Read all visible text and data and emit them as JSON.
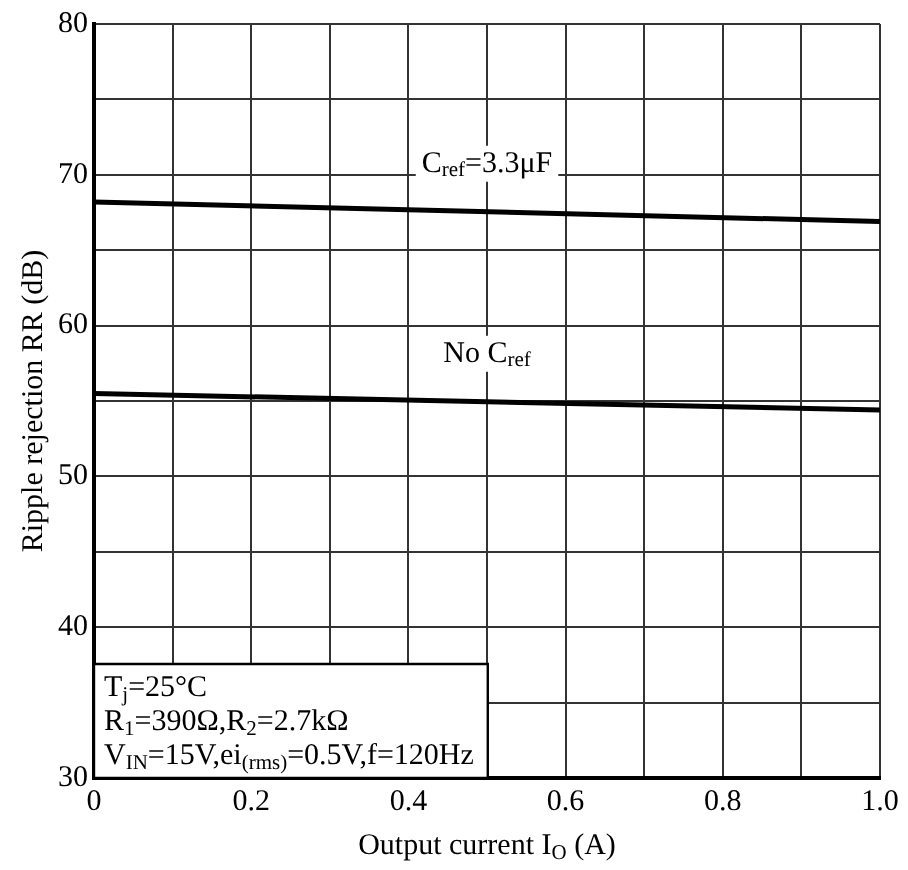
{
  "chart_data": {
    "type": "line",
    "xlabel": "Output current I$_{O}$ (A)",
    "ylabel": "Ripple rejection RR (dB)",
    "x": [
      0,
      1
    ],
    "series": [
      {
        "name": "C$_{ref}$=3.3μF",
        "color": "#000000",
        "values": [
          68.2,
          66.9
        ]
      },
      {
        "name": "No C$_{ref}$",
        "color": "#000000",
        "values": [
          55.5,
          54.4
        ]
      }
    ],
    "xlim": [
      0,
      1
    ],
    "ylim": [
      30,
      80
    ],
    "xticks": [
      0,
      {
        "value": 0.1,
        "label": null
      },
      0.2,
      {
        "value": 0.3,
        "label": null
      },
      0.4,
      {
        "value": 0.5,
        "label": null
      },
      0.6,
      {
        "value": 0.7,
        "label": null
      },
      0.8,
      {
        "value": 0.9,
        "label": null
      },
      {
        "value": 1,
        "label": "1.0"
      }
    ],
    "yticks": [
      30,
      {
        "value": 35,
        "label": null
      },
      40,
      {
        "value": 45,
        "label": null
      },
      50,
      {
        "value": 55,
        "label": null
      },
      60,
      {
        "value": 65,
        "label": null
      },
      70,
      {
        "value": 75,
        "label": null
      },
      80
    ],
    "annotations": [
      "T$_{j}$=25°C",
      "R$_{1}$=390Ω,R$_{2}$=2.7kΩ",
      "V$_{IN}$=15V,ei$_{(rms)}$=0.5V,f=120Hz"
    ],
    "grid": true,
    "legend": false,
    "marker": "none",
    "line_style": "solid"
  }
}
